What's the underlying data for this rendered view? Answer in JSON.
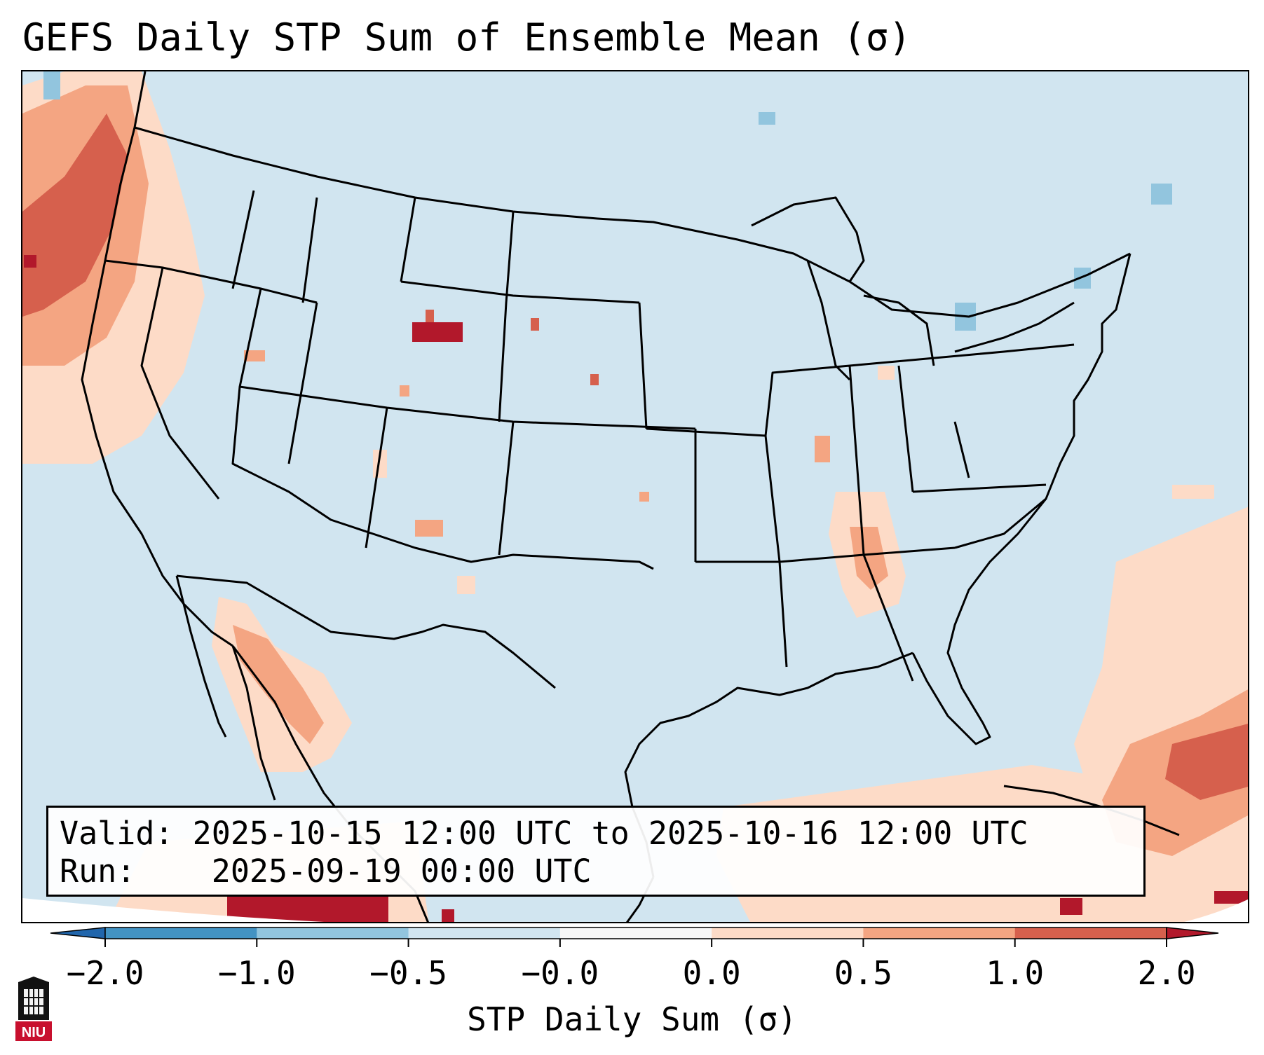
{
  "title": "GEFS Daily STP Sum of Ensemble Mean (σ)",
  "valid_box": {
    "valid_label": "Valid:",
    "valid_value": "2025-10-15 12:00 UTC to 2025-10-16 12:00 UTC",
    "run_label": "Run:",
    "run_value": "2025-09-19 00:00 UTC"
  },
  "colorbar": {
    "label": "STP Daily Sum (σ)",
    "ticks": [
      "−2.0",
      "−1.0",
      "−0.5",
      "−0.0",
      "0.0",
      "0.5",
      "1.0",
      "2.0"
    ],
    "colors": [
      "#4393c3",
      "#92c5de",
      "#d1e5f0",
      "#f7f7f7",
      "#fddbc7",
      "#f4a582",
      "#d6604d"
    ],
    "under_color": "#2166ac",
    "over_color": "#b2182b"
  },
  "map": {
    "projection": "Lambert conformal, CONUS",
    "background_color": "#d1e5f0",
    "hotspots": [
      {
        "region": "Pacific Northwest offshore",
        "max_sigma": 2.0
      },
      {
        "region": "Central Wyoming",
        "max_sigma": 2.0
      },
      {
        "region": "Gulf of California",
        "max_sigma": 1.0
      },
      {
        "region": "Mexico south of Arizona",
        "max_sigma": 2.0
      },
      {
        "region": "Caribbean / Western Atlantic",
        "max_sigma": 1.0
      },
      {
        "region": "Alabama / Tennessee",
        "max_sigma": 0.5
      }
    ]
  },
  "logo": {
    "text": "NIU"
  }
}
